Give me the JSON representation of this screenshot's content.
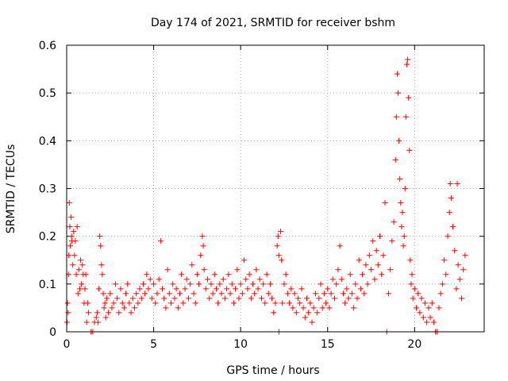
{
  "chart_data": {
    "type": "scatter",
    "title": "Day 174 of 2021, SRMTID for receiver bshm",
    "xlabel": "GPS time / hours",
    "ylabel": "SRMTID / TECUs",
    "xlim": [
      0,
      24
    ],
    "ylim": [
      0,
      0.6
    ],
    "grid": true,
    "legend": "none",
    "marker": "plus",
    "colors": {
      "points": "#ff0000",
      "grid": "#a0a0a0",
      "axis": "#000000"
    },
    "x_ticks": [
      {
        "value": 0,
        "label": "0"
      },
      {
        "value": 5,
        "label": "5"
      },
      {
        "value": 10,
        "label": "10"
      },
      {
        "value": 15,
        "label": "15"
      },
      {
        "value": 20,
        "label": "20"
      }
    ],
    "y_ticks": [
      {
        "value": 0,
        "label": "0"
      },
      {
        "value": 0.1,
        "label": "0.1"
      },
      {
        "value": 0.2,
        "label": "0.2"
      },
      {
        "value": 0.3,
        "label": "0.3"
      },
      {
        "value": 0.4,
        "label": "0.4"
      },
      {
        "value": 0.5,
        "label": "0.5"
      },
      {
        "value": 0.6,
        "label": "0.6"
      }
    ],
    "series": [
      {
        "name": "SRMTID",
        "points": [
          [
            0.02,
            0.02
          ],
          [
            0.05,
            0.06
          ],
          [
            0.08,
            0.04
          ],
          [
            0.1,
            0.12
          ],
          [
            0.12,
            0.16
          ],
          [
            0.15,
            0.27
          ],
          [
            0.18,
            0.22
          ],
          [
            0.2,
            0.18
          ],
          [
            0.25,
            0.24
          ],
          [
            0.28,
            0.2
          ],
          [
            0.3,
            0.19
          ],
          [
            0.35,
            0.14
          ],
          [
            0.4,
            0.21
          ],
          [
            0.45,
            0.16
          ],
          [
            0.5,
            0.19
          ],
          [
            0.55,
            0.12
          ],
          [
            0.6,
            0.22
          ],
          [
            0.65,
            0.08
          ],
          [
            0.7,
            0.13
          ],
          [
            0.75,
            0.09
          ],
          [
            0.8,
            0.15
          ],
          [
            0.85,
            0.1
          ],
          [
            0.9,
            0.14
          ],
          [
            0.95,
            0.12
          ],
          [
            1.0,
            0.06
          ],
          [
            1.05,
            0.09
          ],
          [
            1.1,
            0.12
          ],
          [
            1.15,
            0.02
          ],
          [
            1.2,
            0.06
          ],
          [
            1.25,
            0.04
          ],
          [
            1.4,
            0.0
          ],
          [
            1.5,
            0.0
          ],
          [
            1.6,
            0.02
          ],
          [
            1.7,
            0.03
          ],
          [
            1.75,
            0.04
          ],
          [
            1.8,
            0.02
          ],
          [
            1.85,
            0.09
          ],
          [
            1.9,
            0.2
          ],
          [
            1.95,
            0.18
          ],
          [
            2.0,
            0.14
          ],
          [
            2.05,
            0.12
          ],
          [
            2.1,
            0.08
          ],
          [
            2.15,
            0.05
          ],
          [
            2.2,
            0.06
          ],
          [
            2.25,
            0.03
          ],
          [
            2.3,
            0.07
          ],
          [
            2.4,
            0.04
          ],
          [
            2.5,
            0.08
          ],
          [
            2.6,
            0.05
          ],
          [
            2.7,
            0.06
          ],
          [
            2.8,
            0.1
          ],
          [
            2.9,
            0.07
          ],
          [
            3.0,
            0.04
          ],
          [
            3.1,
            0.09
          ],
          [
            3.2,
            0.06
          ],
          [
            3.3,
            0.05
          ],
          [
            3.4,
            0.08
          ],
          [
            3.5,
            0.1
          ],
          [
            3.6,
            0.06
          ],
          [
            3.7,
            0.04
          ],
          [
            3.8,
            0.07
          ],
          [
            3.9,
            0.05
          ],
          [
            4.0,
            0.08
          ],
          [
            4.1,
            0.06
          ],
          [
            4.2,
            0.09
          ],
          [
            4.3,
            0.07
          ],
          [
            4.4,
            0.1
          ],
          [
            4.5,
            0.08
          ],
          [
            4.6,
            0.12
          ],
          [
            4.7,
            0.09
          ],
          [
            4.8,
            0.11
          ],
          [
            4.9,
            0.07
          ],
          [
            5.0,
            0.1
          ],
          [
            5.1,
            0.06
          ],
          [
            5.2,
            0.08
          ],
          [
            5.3,
            0.11
          ],
          [
            5.4,
            0.19
          ],
          [
            5.5,
            0.09
          ],
          [
            5.6,
            0.07
          ],
          [
            5.7,
            0.05
          ],
          [
            5.8,
            0.13
          ],
          [
            5.9,
            0.08
          ],
          [
            6.0,
            0.06
          ],
          [
            6.1,
            0.1
          ],
          [
            6.2,
            0.07
          ],
          [
            6.3,
            0.09
          ],
          [
            6.4,
            0.05
          ],
          [
            6.5,
            0.08
          ],
          [
            6.6,
            0.12
          ],
          [
            6.7,
            0.06
          ],
          [
            6.8,
            0.09
          ],
          [
            6.9,
            0.11
          ],
          [
            7.0,
            0.07
          ],
          [
            7.1,
            0.1
          ],
          [
            7.2,
            0.14
          ],
          [
            7.3,
            0.08
          ],
          [
            7.4,
            0.06
          ],
          [
            7.5,
            0.12
          ],
          [
            7.6,
            0.1
          ],
          [
            7.7,
            0.16
          ],
          [
            7.8,
            0.2
          ],
          [
            7.85,
            0.18
          ],
          [
            7.9,
            0.13
          ],
          [
            8.0,
            0.09
          ],
          [
            8.1,
            0.11
          ],
          [
            8.2,
            0.07
          ],
          [
            8.3,
            0.1
          ],
          [
            8.4,
            0.08
          ],
          [
            8.5,
            0.12
          ],
          [
            8.6,
            0.09
          ],
          [
            8.7,
            0.06
          ],
          [
            8.8,
            0.1
          ],
          [
            8.9,
            0.08
          ],
          [
            9.0,
            0.11
          ],
          [
            9.1,
            0.07
          ],
          [
            9.2,
            0.09
          ],
          [
            9.3,
            0.12
          ],
          [
            9.4,
            0.08
          ],
          [
            9.5,
            0.1
          ],
          [
            9.6,
            0.06
          ],
          [
            9.7,
            0.09
          ],
          [
            9.8,
            0.13
          ],
          [
            9.9,
            0.07
          ],
          [
            10.0,
            0.1
          ],
          [
            10.1,
            0.08
          ],
          [
            10.2,
            0.15
          ],
          [
            10.3,
            0.11
          ],
          [
            10.4,
            0.09
          ],
          [
            10.5,
            0.12
          ],
          [
            10.6,
            0.07
          ],
          [
            10.7,
            0.1
          ],
          [
            10.8,
            0.08
          ],
          [
            10.9,
            0.13
          ],
          [
            11.0,
            0.09
          ],
          [
            11.1,
            0.11
          ],
          [
            11.2,
            0.07
          ],
          [
            11.3,
            0.1
          ],
          [
            11.4,
            0.06
          ],
          [
            11.5,
            0.12
          ],
          [
            11.6,
            0.08
          ],
          [
            11.7,
            0.1
          ],
          [
            11.8,
            0.07
          ],
          [
            11.9,
            0.04
          ],
          [
            12.0,
            0.06
          ],
          [
            12.1,
            0.18
          ],
          [
            12.15,
            0.2
          ],
          [
            12.2,
            0.16
          ],
          [
            12.3,
            0.21
          ],
          [
            12.35,
            0.15
          ],
          [
            12.4,
            0.06
          ],
          [
            12.2,
            0.0
          ],
          [
            12.5,
            0.1
          ],
          [
            12.6,
            0.12
          ],
          [
            12.7,
            0.08
          ],
          [
            12.8,
            0.06
          ],
          [
            12.9,
            0.09
          ],
          [
            13.0,
            0.05
          ],
          [
            13.1,
            0.08
          ],
          [
            13.2,
            0.04
          ],
          [
            13.3,
            0.07
          ],
          [
            13.4,
            0.06
          ],
          [
            13.5,
            0.09
          ],
          [
            13.6,
            0.05
          ],
          [
            13.7,
            0.03
          ],
          [
            13.8,
            0.07
          ],
          [
            13.9,
            0.04
          ],
          [
            14.0,
            0.06
          ],
          [
            14.1,
            0.02
          ],
          [
            14.2,
            0.05
          ],
          [
            14.3,
            0.08
          ],
          [
            14.4,
            0.04
          ],
          [
            14.5,
            0.07
          ],
          [
            14.6,
            0.1
          ],
          [
            14.7,
            0.05
          ],
          [
            14.8,
            0.08
          ],
          [
            14.9,
            0.06
          ],
          [
            15.0,
            0.09
          ],
          [
            15.1,
            0.05
          ],
          [
            15.2,
            0.08
          ],
          [
            15.3,
            0.11
          ],
          [
            15.4,
            0.07
          ],
          [
            15.5,
            0.1
          ],
          [
            15.6,
            0.13
          ],
          [
            15.7,
            0.18
          ],
          [
            15.8,
            0.11
          ],
          [
            15.9,
            0.08
          ],
          [
            16.0,
            0.06
          ],
          [
            16.1,
            0.09
          ],
          [
            16.2,
            0.07
          ],
          [
            16.3,
            0.12
          ],
          [
            16.4,
            0.08
          ],
          [
            16.5,
            0.05
          ],
          [
            16.6,
            0.1
          ],
          [
            16.7,
            0.07
          ],
          [
            16.8,
            0.15
          ],
          [
            16.9,
            0.09
          ],
          [
            17.0,
            0.12
          ],
          [
            17.1,
            0.08
          ],
          [
            17.2,
            0.14
          ],
          [
            17.3,
            0.1
          ],
          [
            17.4,
            0.16
          ],
          [
            17.5,
            0.13
          ],
          [
            17.6,
            0.19
          ],
          [
            17.7,
            0.11
          ],
          [
            17.8,
            0.17
          ],
          [
            17.9,
            0.14
          ],
          [
            18.0,
            0.2
          ],
          [
            18.1,
            0.12
          ],
          [
            18.2,
            0.16
          ],
          [
            18.3,
            0.27
          ],
          [
            18.4,
            0.0
          ],
          [
            18.5,
            0.08
          ],
          [
            18.6,
            0.13
          ],
          [
            18.7,
            0.19
          ],
          [
            18.8,
            0.23
          ],
          [
            18.9,
            0.36
          ],
          [
            18.95,
            0.45
          ],
          [
            19.0,
            0.54
          ],
          [
            19.05,
            0.5
          ],
          [
            19.1,
            0.4
          ],
          [
            19.15,
            0.32
          ],
          [
            19.2,
            0.27
          ],
          [
            19.25,
            0.22
          ],
          [
            19.3,
            0.25
          ],
          [
            19.35,
            0.18
          ],
          [
            19.4,
            0.2
          ],
          [
            19.45,
            0.3
          ],
          [
            19.5,
            0.45
          ],
          [
            19.55,
            0.56
          ],
          [
            19.6,
            0.57
          ],
          [
            19.65,
            0.49
          ],
          [
            19.7,
            0.38
          ],
          [
            19.75,
            0.15
          ],
          [
            19.8,
            0.1
          ],
          [
            19.85,
            0.12
          ],
          [
            19.9,
            0.07
          ],
          [
            20.0,
            0.09
          ],
          [
            20.1,
            0.05
          ],
          [
            20.2,
            0.08
          ],
          [
            20.3,
            0.04
          ],
          [
            20.4,
            0.07
          ],
          [
            20.5,
            0.03
          ],
          [
            20.6,
            0.06
          ],
          [
            20.7,
            0.02
          ],
          [
            20.8,
            0.05
          ],
          [
            20.9,
            0.03
          ],
          [
            21.0,
            0.06
          ],
          [
            21.1,
            0.02
          ],
          [
            21.2,
            0.0
          ],
          [
            21.3,
            0.0
          ],
          [
            21.4,
            0.05
          ],
          [
            21.5,
            0.08
          ],
          [
            21.6,
            0.1
          ],
          [
            21.7,
            0.15
          ],
          [
            21.8,
            0.12
          ],
          [
            21.9,
            0.2
          ],
          [
            22.0,
            0.25
          ],
          [
            22.05,
            0.31
          ],
          [
            22.1,
            0.28
          ],
          [
            22.2,
            0.22
          ],
          [
            22.3,
            0.17
          ],
          [
            22.4,
            0.09
          ],
          [
            22.45,
            0.31
          ],
          [
            22.5,
            0.14
          ],
          [
            22.6,
            0.11
          ],
          [
            22.7,
            0.07
          ],
          [
            22.8,
            0.13
          ],
          [
            22.9,
            0.16
          ]
        ]
      }
    ]
  }
}
